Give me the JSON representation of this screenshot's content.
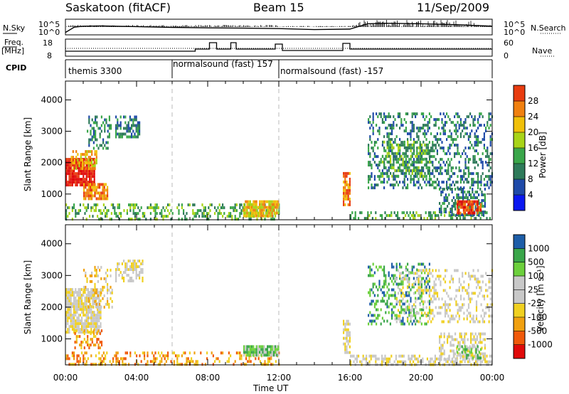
{
  "header": {
    "station": "Saskatoon (fitACF)",
    "beam": "Beam 15",
    "date": "11/Sep/2009"
  },
  "strip": {
    "nsky_label": "N.Sky",
    "nsearch_label": "N.Search",
    "nsky_ticks": [
      "10^5",
      "10^0"
    ],
    "freq_label_1": "Freq.",
    "freq_label_2": "[MHz]",
    "freq_ticks": [
      "18",
      "8"
    ],
    "nave_label": "Nave",
    "nave_ticks": [
      "60",
      "0"
    ],
    "cpid_label": "CPID",
    "cpid_segments": [
      {
        "label": "themis 3300",
        "start_hour": 0
      },
      {
        "label": "normalsound (fast) 157",
        "start_hour": 6
      },
      {
        "label": "normalsound (fast) -157",
        "start_hour": 12
      }
    ]
  },
  "axes": {
    "ylabel": "Slant Range [km]",
    "xlabel": "Time UT",
    "x_ticks": [
      "00:00",
      "04:00",
      "08:00",
      "12:00",
      "16:00",
      "20:00",
      "00:00"
    ],
    "y_ticks": [
      "1000",
      "2000",
      "3000",
      "4000"
    ]
  },
  "colors": {
    "power": [
      "#0a18f0",
      "#1f4aa8",
      "#2e7a5a",
      "#3aa64a",
      "#a8d418",
      "#f0c00a",
      "#f08010",
      "#e83c10",
      "#e00a0a"
    ],
    "velocity": [
      "#e00a0a",
      "#f05a0a",
      "#f0a010",
      "#f0d020",
      "#c8c8c8",
      "#c8c8c8",
      "#6cd03c",
      "#3aa64a",
      "#1e5ea8",
      "#0a2ac8"
    ]
  },
  "colorbars": {
    "power": {
      "label": "Power [dB]",
      "ticks": [
        "4",
        "8",
        "12",
        "16",
        "20",
        "24",
        "28"
      ]
    },
    "velocity": {
      "label": "Velocity [m s⁻¹]",
      "ticks": [
        "-1000",
        "-500",
        "-100",
        "-25",
        "25",
        "100",
        "500",
        "1000"
      ]
    }
  },
  "chart_data": [
    {
      "type": "line",
      "name": "N.Sky",
      "x_hours": [
        0,
        0.5,
        1,
        2,
        4,
        6,
        8,
        10,
        12,
        14,
        16,
        17,
        18,
        20,
        22,
        24
      ],
      "y_log10": [
        0.4,
        2.6,
        3.0,
        3.1,
        2.8,
        2.5,
        2.3,
        2.2,
        2.0,
        1.6,
        1.8,
        4.0,
        4.2,
        4.0,
        3.6,
        3.0
      ]
    },
    {
      "type": "line",
      "name": "Freq",
      "ylim": [
        8,
        18
      ],
      "steps": [
        {
          "from": 0,
          "to": 7.3,
          "value": 10.5
        },
        {
          "from": 7.3,
          "to": 8.1,
          "value": 12
        },
        {
          "from": 8.1,
          "to": 8.5,
          "value": 16.5
        },
        {
          "from": 8.5,
          "to": 9.3,
          "value": 12
        },
        {
          "from": 9.3,
          "to": 9.6,
          "value": 16.5
        },
        {
          "from": 9.6,
          "to": 11.8,
          "value": 12
        },
        {
          "from": 11.8,
          "to": 12.2,
          "value": 15.5
        },
        {
          "from": 12.2,
          "to": 15.6,
          "value": 11
        },
        {
          "from": 15.6,
          "to": 16.0,
          "value": 16
        },
        {
          "from": 16.0,
          "to": 24,
          "value": 12
        }
      ]
    },
    {
      "type": "heatmap",
      "name": "Power",
      "xlim_hours": [
        0,
        24
      ],
      "ylim_km": [
        180,
        4600
      ],
      "scatter_regions": [
        {
          "h0": 0.0,
          "h1": 1.6,
          "r0": 1250,
          "r1": 2150,
          "level": 8,
          "density": 0.9
        },
        {
          "h0": 0.3,
          "h1": 1.8,
          "r0": 1800,
          "r1": 2400,
          "level": 5,
          "density": 0.5
        },
        {
          "h0": 1.0,
          "h1": 2.4,
          "r0": 850,
          "r1": 1350,
          "level": 6,
          "density": 0.8
        },
        {
          "h0": 1.2,
          "h1": 2.6,
          "r0": 2500,
          "r1": 3500,
          "level": 2,
          "density": 0.35
        },
        {
          "h0": 2.8,
          "h1": 4.2,
          "r0": 2800,
          "r1": 3500,
          "level": 2,
          "density": 0.6
        },
        {
          "h0": 0.0,
          "h1": 12.0,
          "r0": 180,
          "r1": 700,
          "level": 3,
          "density": 0.35
        },
        {
          "h0": 10.0,
          "h1": 12.0,
          "r0": 300,
          "r1": 800,
          "level": 5,
          "density": 0.9
        },
        {
          "h0": 15.6,
          "h1": 16.0,
          "r0": 700,
          "r1": 1700,
          "level": 6,
          "density": 0.8
        },
        {
          "h0": 16.0,
          "h1": 24.0,
          "r0": 180,
          "r1": 450,
          "level": 3,
          "density": 0.4
        },
        {
          "h0": 17.0,
          "h1": 24.0,
          "r0": 1200,
          "r1": 3600,
          "level": 2,
          "density": 0.35
        },
        {
          "h0": 17.8,
          "h1": 20.5,
          "r0": 1600,
          "r1": 2700,
          "level": 3,
          "density": 0.45
        },
        {
          "h0": 21.0,
          "h1": 23.6,
          "r0": 350,
          "r1": 1200,
          "level": 2,
          "density": 0.5
        },
        {
          "h0": 22.0,
          "h1": 23.4,
          "r0": 400,
          "r1": 800,
          "level": 7,
          "density": 0.8
        }
      ]
    },
    {
      "type": "heatmap",
      "name": "Velocity",
      "xlim_hours": [
        0,
        24
      ],
      "ylim_km": [
        180,
        4600
      ],
      "scatter_regions": [
        {
          "h0": 0.0,
          "h1": 2.0,
          "r0": 1200,
          "r1": 2600,
          "level": 4,
          "density": 0.85
        },
        {
          "h0": 0.5,
          "h1": 2.0,
          "r0": 700,
          "r1": 1300,
          "level": 2,
          "density": 0.4
        },
        {
          "h0": 1.0,
          "h1": 2.6,
          "r0": 2000,
          "r1": 3300,
          "level": 3,
          "density": 0.3
        },
        {
          "h0": 2.8,
          "h1": 4.3,
          "r0": 2800,
          "r1": 3500,
          "level": 4,
          "density": 0.6
        },
        {
          "h0": 0.0,
          "h1": 12.0,
          "r0": 180,
          "r1": 600,
          "level": 2,
          "density": 0.35
        },
        {
          "h0": 10.0,
          "h1": 12.0,
          "r0": 500,
          "r1": 800,
          "level": 6,
          "density": 0.9
        },
        {
          "h0": 15.6,
          "h1": 16.0,
          "r0": 600,
          "r1": 1600,
          "level": 4,
          "density": 0.7
        },
        {
          "h0": 16.0,
          "h1": 24.0,
          "r0": 180,
          "r1": 500,
          "level": 4,
          "density": 0.5
        },
        {
          "h0": 17.0,
          "h1": 20.5,
          "r0": 1500,
          "r1": 3400,
          "level": 7,
          "density": 0.35
        },
        {
          "h0": 18.5,
          "h1": 24.0,
          "r0": 1500,
          "r1": 3200,
          "level": 4,
          "density": 0.3
        },
        {
          "h0": 21.0,
          "h1": 23.6,
          "r0": 350,
          "r1": 1200,
          "level": 4,
          "density": 0.5
        },
        {
          "h0": 22.0,
          "h1": 23.4,
          "r0": 400,
          "r1": 800,
          "level": 6,
          "density": 0.5
        }
      ]
    }
  ]
}
